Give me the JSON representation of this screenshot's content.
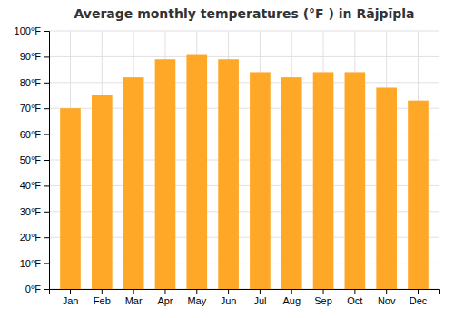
{
  "chart_data": {
    "type": "bar",
    "title": "Average monthly temperatures (°F ) in Rājpīpla",
    "categories": [
      "Jan",
      "Feb",
      "Mar",
      "Apr",
      "May",
      "Jun",
      "Jul",
      "Aug",
      "Sep",
      "Oct",
      "Nov",
      "Dec"
    ],
    "values": [
      70,
      75,
      82,
      89,
      91,
      89,
      84,
      82,
      84,
      84,
      78,
      73
    ],
    "color": "#FFA726",
    "ylim": [
      0,
      100
    ],
    "yticks": [
      {
        "value": 0,
        "label": "0°F"
      },
      {
        "value": 10,
        "label": "10°F"
      },
      {
        "value": 20,
        "label": "20°F"
      },
      {
        "value": 30,
        "label": "30°F"
      },
      {
        "value": 40,
        "label": "40°F"
      },
      {
        "value": 50,
        "label": "50°F"
      },
      {
        "value": 60,
        "label": "60°F"
      },
      {
        "value": 70,
        "label": "70°F"
      },
      {
        "value": 80,
        "label": "80°F"
      },
      {
        "value": 90,
        "label": "90°F"
      },
      {
        "value": 100,
        "label": "100°F"
      }
    ],
    "grid": true
  }
}
